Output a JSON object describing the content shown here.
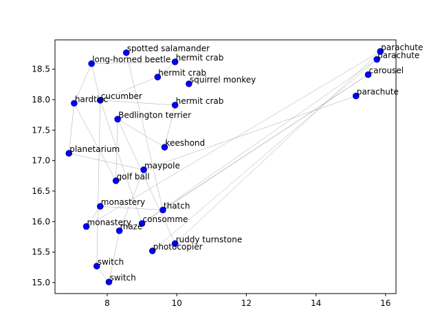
{
  "chart_data": {
    "type": "scatter",
    "title": "",
    "xlabel": "",
    "ylabel": "",
    "xlim": [
      6.5,
      16.3
    ],
    "ylim": [
      14.82,
      18.98
    ],
    "xticks": [
      8,
      10,
      12,
      14,
      16
    ],
    "yticks": [
      15.0,
      15.5,
      16.0,
      16.5,
      17.0,
      17.5,
      18.0,
      18.5
    ],
    "grid": false,
    "point_color": "#0000ff",
    "edge_color": "#808080",
    "points": [
      {
        "label": "parachute",
        "x": 15.85,
        "y": 18.79
      },
      {
        "label": "parachute",
        "x": 15.75,
        "y": 18.66
      },
      {
        "label": "carousel",
        "x": 15.5,
        "y": 18.41
      },
      {
        "label": "parachute",
        "x": 15.15,
        "y": 18.06
      },
      {
        "label": "spotted salamander",
        "x": 8.55,
        "y": 18.77
      },
      {
        "label": "hermit crab",
        "x": 9.95,
        "y": 18.62
      },
      {
        "label": "long-horned beetle",
        "x": 7.55,
        "y": 18.59
      },
      {
        "label": "hermit crab",
        "x": 9.45,
        "y": 18.37
      },
      {
        "label": "squirrel monkey",
        "x": 10.35,
        "y": 18.26
      },
      {
        "label": "cucumber",
        "x": 7.8,
        "y": 17.99
      },
      {
        "label": "hardtisc",
        "x": 7.05,
        "y": 17.94
      },
      {
        "label": "hermit crab",
        "x": 9.95,
        "y": 17.91
      },
      {
        "label": "Bedlington terrier",
        "x": 8.3,
        "y": 17.68
      },
      {
        "label": "keeshond",
        "x": 9.65,
        "y": 17.22
      },
      {
        "label": "planetarium",
        "x": 6.9,
        "y": 17.12
      },
      {
        "label": "maypole",
        "x": 9.05,
        "y": 16.85
      },
      {
        "label": "golf ball",
        "x": 8.25,
        "y": 16.67
      },
      {
        "label": "monastery",
        "x": 7.8,
        "y": 16.25
      },
      {
        "label": "thatch",
        "x": 9.6,
        "y": 16.19
      },
      {
        "label": "consomme",
        "x": 9.0,
        "y": 15.97
      },
      {
        "label": "monastery",
        "x": 7.4,
        "y": 15.92
      },
      {
        "label": "maze",
        "x": 8.35,
        "y": 15.85
      },
      {
        "label": "ruddy turnstone",
        "x": 9.95,
        "y": 15.64
      },
      {
        "label": "photocopier",
        "x": 9.3,
        "y": 15.52
      },
      {
        "label": "switch",
        "x": 7.7,
        "y": 15.27
      },
      {
        "label": "switch",
        "x": 8.05,
        "y": 15.01
      }
    ],
    "edges": [
      [
        0,
        20
      ],
      [
        1,
        19
      ],
      [
        2,
        18
      ],
      [
        3,
        15
      ],
      [
        4,
        18
      ],
      [
        5,
        7
      ],
      [
        6,
        5
      ],
      [
        7,
        9
      ],
      [
        9,
        6
      ],
      [
        9,
        24
      ],
      [
        9,
        19
      ],
      [
        9,
        11
      ],
      [
        10,
        6
      ],
      [
        10,
        16
      ],
      [
        12,
        13
      ],
      [
        12,
        22
      ],
      [
        13,
        11
      ],
      [
        14,
        10
      ],
      [
        14,
        15
      ],
      [
        15,
        21
      ],
      [
        16,
        12
      ],
      [
        17,
        20
      ],
      [
        18,
        17
      ],
      [
        19,
        2
      ],
      [
        21,
        25
      ],
      [
        22,
        0
      ],
      [
        24,
        25
      ],
      [
        1,
        23
      ]
    ]
  }
}
